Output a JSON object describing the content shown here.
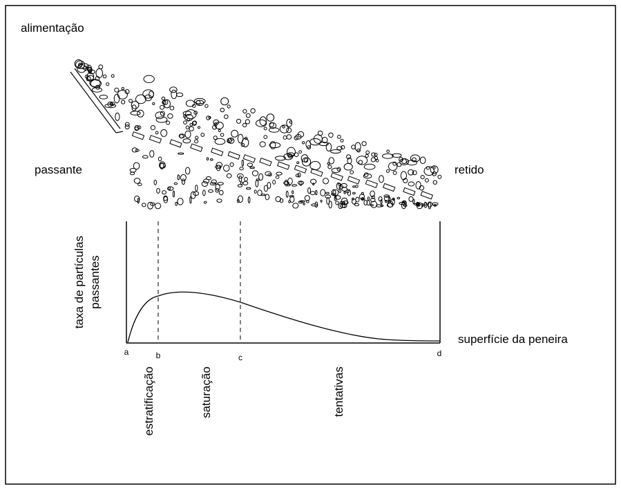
{
  "labels": {
    "feed": "alimentação",
    "passing": "passante",
    "retained": "retido"
  },
  "chart": {
    "y_label": [
      "taxa de partículas",
      "passantes"
    ],
    "x_label": "superfície da peneira",
    "points": [
      "a",
      "b",
      "c",
      "d"
    ],
    "zones": [
      "estratificação",
      "saturação",
      "tentativas"
    ]
  }
}
